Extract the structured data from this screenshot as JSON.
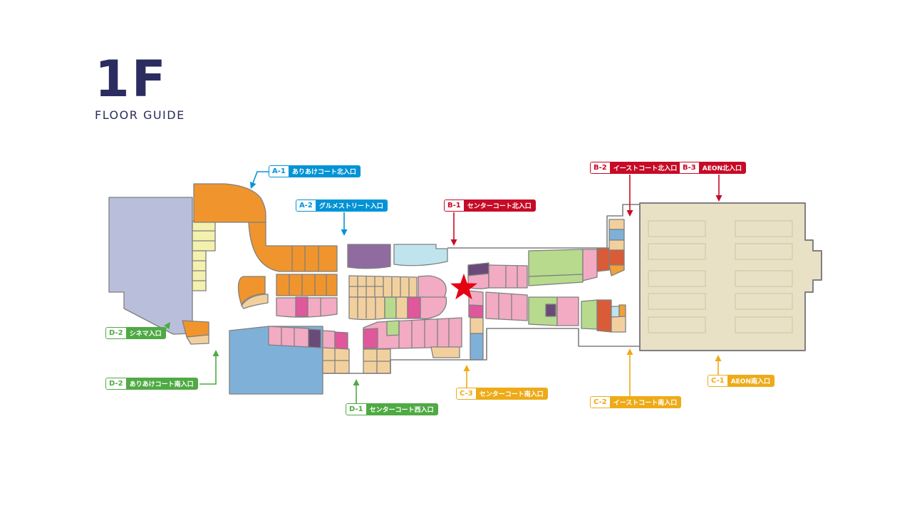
{
  "header": {
    "floor": "1F",
    "subtitle": "FLOOR GUIDE"
  },
  "colors": {
    "title": "#2b2c5f",
    "star": "#e60012",
    "labels": {
      "blue": "#0093d6",
      "red": "#c60b27",
      "yellow": "#eeab18",
      "green": "#4faa44"
    }
  },
  "map": {
    "marker": "star",
    "store_area": "AEON"
  },
  "entrances": [
    {
      "code": "A-1",
      "name": "ありあけコート北入口",
      "group": "blue"
    },
    {
      "code": "A-2",
      "name": "グルメストリート入口",
      "group": "blue"
    },
    {
      "code": "B-1",
      "name": "センターコート北入口",
      "group": "red"
    },
    {
      "code": "B-2",
      "name": "イーストコート北入口",
      "group": "red"
    },
    {
      "code": "B-3",
      "name": "AEON北入口",
      "group": "red"
    },
    {
      "code": "C-1",
      "name": "AEON南入口",
      "group": "yellow"
    },
    {
      "code": "C-2",
      "name": "イーストコート南入口",
      "group": "yellow"
    },
    {
      "code": "C-3",
      "name": "センターコート南入口",
      "group": "yellow"
    },
    {
      "code": "D-1",
      "name": "センターコート西入口",
      "group": "green"
    },
    {
      "code": "D-2",
      "name": "シネマ入口",
      "group": "green"
    },
    {
      "code": "D-2",
      "name": "ありあけコート南入口",
      "group": "green"
    }
  ]
}
